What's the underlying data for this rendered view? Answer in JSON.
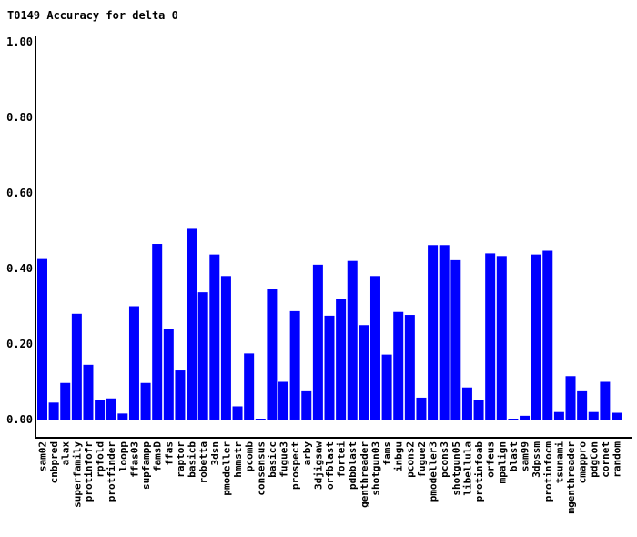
{
  "chart_data": {
    "type": "bar",
    "title": "T0149 Accuracy for delta 0",
    "xlabel": "",
    "ylabel": "",
    "ylim": [
      0,
      1.0
    ],
    "yticks": [
      "0.00",
      "0.20",
      "0.40",
      "0.60",
      "0.80",
      "1.00"
    ],
    "bar_color": "#0000ff",
    "grid": false,
    "categories": [
      "sam02",
      "cnbpred",
      "alax",
      "superfamily",
      "protinfofr",
      "rpfold",
      "protfinder",
      "loopp",
      "ffas03",
      "supfampp",
      "famsD",
      "ffas",
      "raptor",
      "basicb",
      "robetta",
      "3dsn",
      "pmodeller",
      "hmmstr",
      "pcomb",
      "consensus",
      "basicc",
      "fugue3",
      "prospect",
      "arby",
      "3djigsaw",
      "orfblast",
      "fortei",
      "pdbblast",
      "genthreader",
      "shotgun03",
      "fams",
      "inbgu",
      "pcons2",
      "fugue2",
      "pmodeller3",
      "pcons3",
      "shotgun05",
      "libellula",
      "protinfoab",
      "orfeus",
      "mpalign",
      "blast",
      "sam99",
      "3dpssm",
      "protinfocm",
      "tsunami",
      "mgenthreader",
      "cmappro",
      "pdgCon",
      "cornet",
      "random"
    ],
    "values": [
      0.425,
      0.045,
      0.097,
      0.28,
      0.145,
      0.052,
      0.056,
      0.016,
      0.3,
      0.097,
      0.465,
      0.24,
      0.13,
      0.505,
      0.337,
      0.437,
      0.38,
      0.035,
      0.175,
      0.0,
      0.347,
      0.1,
      0.287,
      0.075,
      0.41,
      0.275,
      0.32,
      0.42,
      0.25,
      0.38,
      0.172,
      0.285,
      0.277,
      0.058,
      0.462,
      0.462,
      0.422,
      0.085,
      0.053,
      0.44,
      0.433,
      0.0,
      0.01,
      0.437,
      0.447,
      0.02,
      0.115,
      0.075,
      0.02,
      0.1,
      0.018
    ]
  }
}
